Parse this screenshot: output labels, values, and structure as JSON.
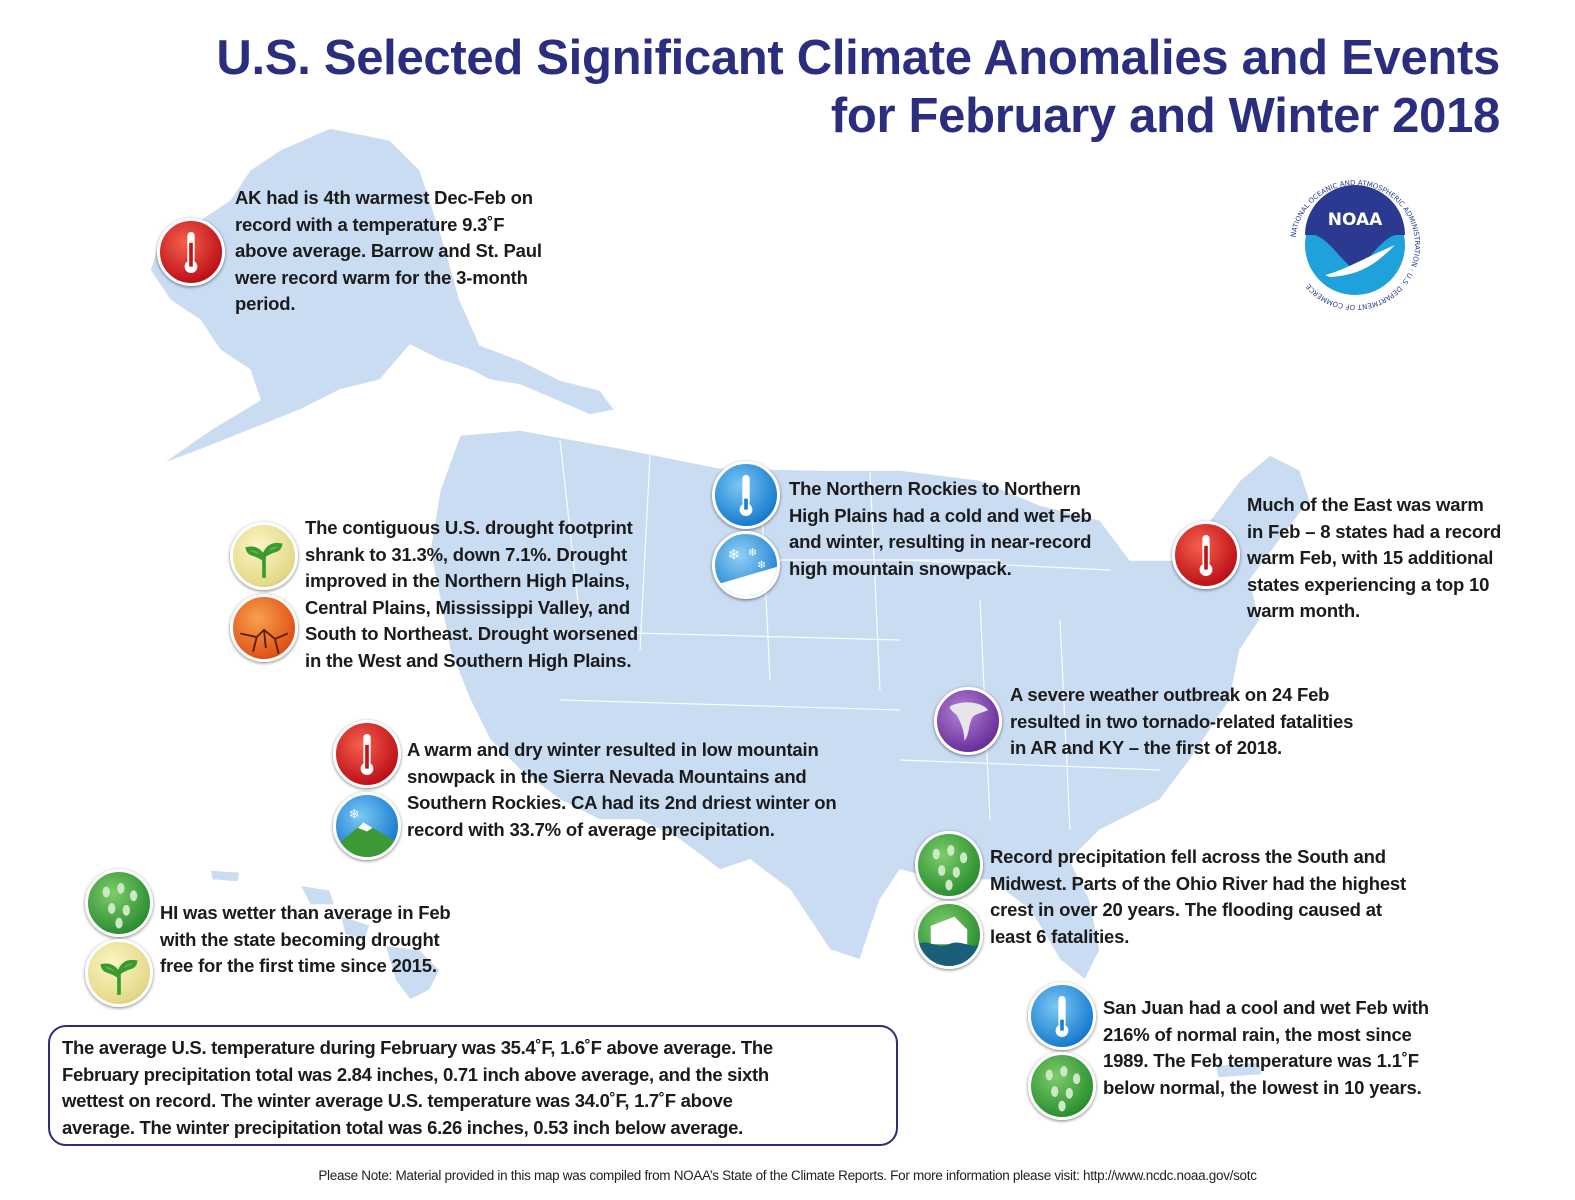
{
  "title": {
    "line1": "U.S. Selected Significant Climate Anomalies and Events",
    "line2": "for February and Winter 2018"
  },
  "logo": {
    "text": "NOAA",
    "ring_text": "NATIONAL OCEANIC AND ATMOSPHERIC ADMINISTRATION · U.S. DEPARTMENT OF COMMERCE"
  },
  "colors": {
    "title": "#2b2e7e",
    "map_fill": "#c9dcf2",
    "warm": "#c0141b",
    "cold": "#1c7fd0",
    "precip": "#2f9234",
    "tornado": "#6d339d",
    "drought_worse": "#e0551a"
  },
  "annotations": [
    {
      "id": "alaska",
      "icons": [
        "thermometer-warm-icon"
      ],
      "lines": [
        "AK had is 4th warmest Dec-Feb on",
        "record with a temperature 9.3˚F",
        "above average. Barrow and St. Paul",
        "were record warm for the 3-month",
        "period."
      ]
    },
    {
      "id": "drought",
      "icons": [
        "drought-improved-icon",
        "drought-worsened-icon"
      ],
      "lines": [
        "The contiguous U.S. drought footprint",
        "shrank to 31.3%, down 7.1%. Drought",
        "improved in the Northern High Plains,",
        "Central Plains, Mississippi Valley, and",
        "South to Northeast. Drought worsened",
        "in the West and Southern High Plains."
      ]
    },
    {
      "id": "northern-rockies",
      "icons": [
        "thermometer-cold-icon",
        "snowfall-icon"
      ],
      "lines": [
        "The Northern Rockies to Northern",
        "High Plains had a cold and wet Feb",
        "and winter, resulting in near-record",
        "high mountain snowpack."
      ]
    },
    {
      "id": "east",
      "icons": [
        "thermometer-warm-icon"
      ],
      "lines": [
        "Much of the East was warm",
        "in Feb – 8 states had a record",
        "warm Feb, with 15 additional",
        "states experiencing a top 10",
        "warm month."
      ]
    },
    {
      "id": "tornado",
      "icons": [
        "tornado-icon"
      ],
      "lines": [
        "A severe weather outbreak on 24 Feb",
        "resulted in two tornado-related fatalities",
        "in AR and KY – the first of 2018."
      ]
    },
    {
      "id": "california",
      "icons": [
        "thermometer-warm-icon",
        "low-snowpack-icon"
      ],
      "lines": [
        "A warm and dry winter resulted in low mountain",
        "snowpack in the Sierra Nevada Mountains and",
        "Southern Rockies. CA had its 2nd driest winter on",
        "record with 33.7% of average precipitation."
      ]
    },
    {
      "id": "south-midwest",
      "icons": [
        "rain-icon",
        "flood-icon"
      ],
      "lines": [
        "Record precipitation fell across the South and",
        "Midwest. Parts of the Ohio River had the highest",
        "crest in over 20 years. The flooding caused at",
        "least 6 fatalities."
      ]
    },
    {
      "id": "hawaii",
      "icons": [
        "rain-icon",
        "drought-improved-icon"
      ],
      "lines": [
        "HI was wetter than average in Feb",
        "with the state becoming drought",
        "free for the first time since 2015."
      ]
    },
    {
      "id": "san-juan",
      "icons": [
        "thermometer-cold-icon",
        "rain-icon"
      ],
      "lines": [
        "San Juan had a cool and wet Feb with",
        "216% of normal rain, the most since",
        "1989. The Feb temperature was 1.1˚F",
        "below normal, the lowest in 10 years."
      ]
    }
  ],
  "summary": {
    "lines": [
      "The average U.S. temperature during February was 35.4˚F, 1.6˚F above average. The",
      "February precipitation total was 2.84 inches, 0.71 inch above average, and the sixth",
      "wettest on record. The winter average U.S. temperature was 34.0˚F, 1.7˚F above",
      "average. The winter precipitation total was 6.26 inches, 0.53 inch below average."
    ]
  },
  "footer": "Please Note: Material provided in this map was compiled from NOAA’s State of the Climate Reports. For more information please visit: http://www.ncdc.noaa.gov/sotc"
}
